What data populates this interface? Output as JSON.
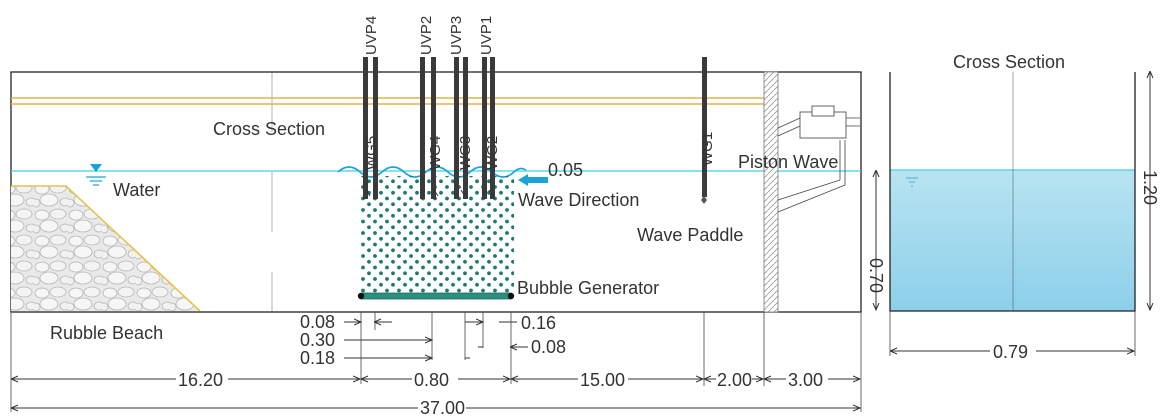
{
  "labels": {
    "cross_section_left": "Cross Section",
    "cross_section_right": "Cross Section",
    "water": "Water",
    "wave_direction": "Wave Direction",
    "wave_paddle": "Wave Paddle",
    "piston_wave": "Piston Wave",
    "bubble_generator": "Bubble Generator",
    "rubble_beach": "Rubble Beach"
  },
  "probes": {
    "uvp": [
      "UVP4",
      "UVP2",
      "UVP3",
      "UVP1"
    ],
    "wg": [
      "WG5",
      "WG4",
      "WG3",
      "WG2",
      "WG1"
    ]
  },
  "dimensions": {
    "wave_height": "0.05",
    "d_008_left": "0.08",
    "d_030": "0.30",
    "d_018": "0.18",
    "d_016": "0.16",
    "d_008_right": "0.08",
    "d_1620": "16.20",
    "d_080": "0.80",
    "d_1500": "15.00",
    "d_200": "2.00",
    "d_300": "3.00",
    "d_3700": "37.00",
    "cs_depth": "0.70",
    "cs_height": "1.20",
    "cs_width": "0.79"
  },
  "colors": {
    "water": "#3fd0e8",
    "rail": "#e8b24a",
    "bubbles": "#1e7a6e",
    "generator": "#2a8f7f",
    "beach_edge": "#e6c34a",
    "arrow": "#1aa3d9",
    "tank_fill": "#a6dcef"
  }
}
